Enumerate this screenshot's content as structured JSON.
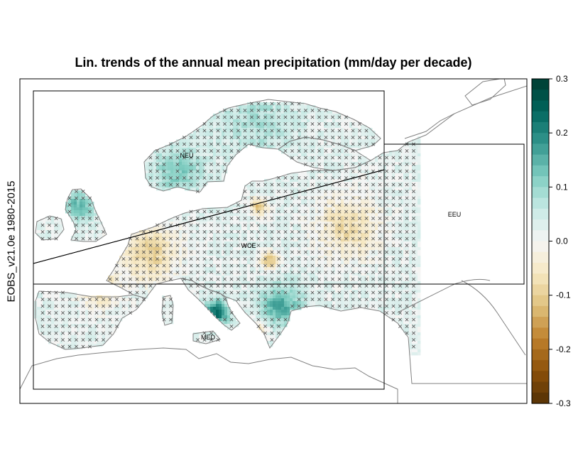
{
  "chart_data": {
    "type": "heatmap",
    "title": "Lin. trends of the annual mean precipitation (mm/day per decade)",
    "ylabel": "EOBS_v21.0e 1980-2015",
    "colorbar": {
      "range": [
        -0.3,
        0.3
      ],
      "ticks": [
        "0.3",
        "0.2",
        "0.1",
        "0.0",
        "-0.1",
        "-0.2",
        "-0.3"
      ],
      "tick_values": [
        0.3,
        0.2,
        0.1,
        0.0,
        -0.1,
        -0.2,
        -0.3
      ],
      "colors": [
        "#543005",
        "#8c510a",
        "#bf812d",
        "#dfc27d",
        "#f6e8c3",
        "#f5f5f5",
        "#c7eae5",
        "#80cdc1",
        "#35978f",
        "#01665e",
        "#003c30"
      ]
    },
    "regions": [
      {
        "label": "NEU"
      },
      {
        "label": "WCE"
      },
      {
        "label": "MED"
      },
      {
        "label": "EEU"
      }
    ],
    "legend_placement": "right",
    "grid": false,
    "significance_marker": "x",
    "colors": {
      "coast": "#808080",
      "frame": "#000000",
      "cross": "#555555"
    }
  }
}
